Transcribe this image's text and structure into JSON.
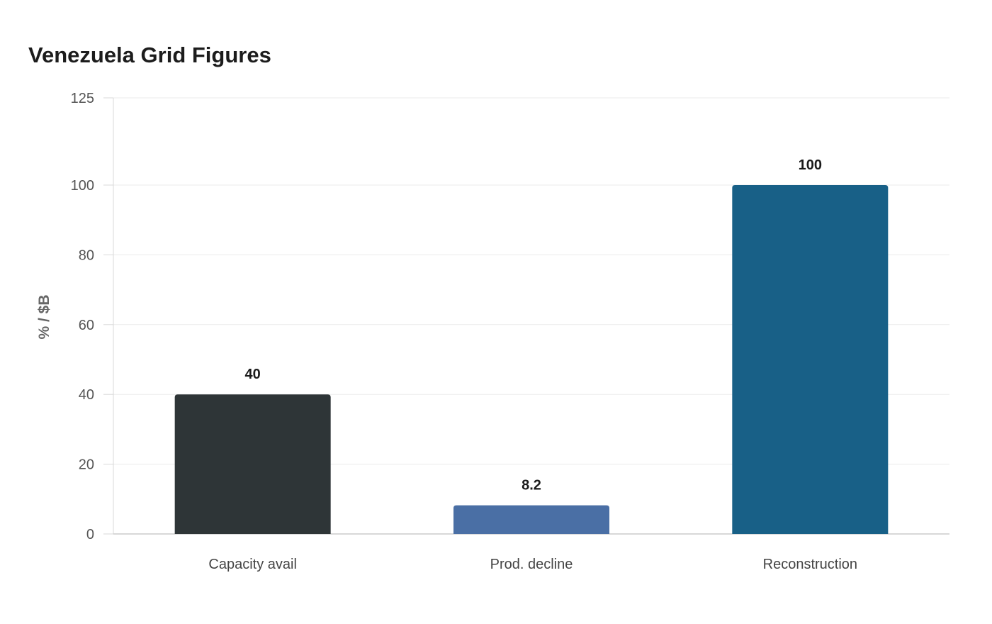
{
  "chart_data": {
    "type": "bar",
    "title": "Venezuela Grid Figures",
    "xlabel": "",
    "ylabel": "% / $B",
    "categories": [
      "Capacity avail",
      "Prod. decline",
      "Reconstruction"
    ],
    "values": [
      40,
      8.2,
      100
    ],
    "data_labels": [
      "40",
      "8.2",
      "100"
    ],
    "colors": [
      "#2e3537",
      "#4a6fa5",
      "#186087"
    ],
    "ylim": [
      0,
      125
    ],
    "yticks": [
      0,
      20,
      40,
      60,
      80,
      100,
      125
    ],
    "grid": true,
    "legend": "none"
  }
}
